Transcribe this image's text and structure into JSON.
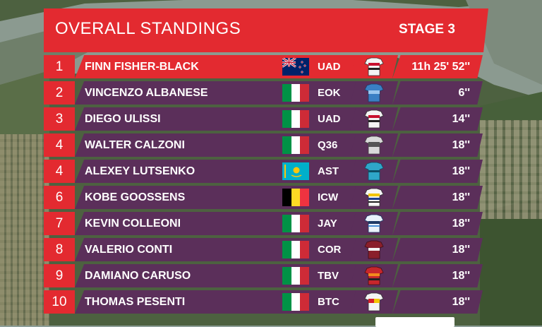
{
  "header": {
    "title": "OVERALL STANDINGS",
    "stage": "STAGE 3"
  },
  "colors": {
    "accent_red": "#e32a30",
    "row_purple": "#5b2f5a"
  },
  "standings": [
    {
      "pos": "1",
      "name": "FINN FISHER-BLACK",
      "flag": "new-zealand-flag",
      "team": "UAD",
      "jersey": "uae-jersey-icon",
      "time": "11h 25' 52''"
    },
    {
      "pos": "2",
      "name": "VINCENZO ALBANESE",
      "flag": "italy-flag",
      "team": "EOK",
      "jersey": "eolo-jersey-icon",
      "time": "6''"
    },
    {
      "pos": "3",
      "name": "DIEGO ULISSI",
      "flag": "italy-flag",
      "team": "UAD",
      "jersey": "uae-jersey-icon",
      "time": "14''"
    },
    {
      "pos": "4",
      "name": "WALTER CALZONI",
      "flag": "italy-flag",
      "team": "Q36",
      "jersey": "q36-jersey-icon",
      "time": "18''"
    },
    {
      "pos": "4",
      "name": "ALEXEY LUTSENKO",
      "flag": "kazakhstan-flag",
      "team": "AST",
      "jersey": "astana-jersey-icon",
      "time": "18''"
    },
    {
      "pos": "6",
      "name": "KOBE GOOSSENS",
      "flag": "belgium-flag",
      "team": "ICW",
      "jersey": "intermarche-jersey-icon",
      "time": "18''"
    },
    {
      "pos": "7",
      "name": "KEVIN COLLEONI",
      "flag": "italy-flag",
      "team": "JAY",
      "jersey": "jayco-jersey-icon",
      "time": "18''"
    },
    {
      "pos": "8",
      "name": "VALERIO CONTI",
      "flag": "italy-flag",
      "team": "COR",
      "jersey": "corratec-jersey-icon",
      "time": "18''"
    },
    {
      "pos": "9",
      "name": "DAMIANO CARUSO",
      "flag": "italy-flag",
      "team": "TBV",
      "jersey": "bahrain-jersey-icon",
      "time": "18''"
    },
    {
      "pos": "10",
      "name": "THOMAS PESENTI",
      "flag": "italy-flag",
      "team": "BTC",
      "jersey": "beltrami-jersey-icon",
      "time": "18''"
    }
  ]
}
